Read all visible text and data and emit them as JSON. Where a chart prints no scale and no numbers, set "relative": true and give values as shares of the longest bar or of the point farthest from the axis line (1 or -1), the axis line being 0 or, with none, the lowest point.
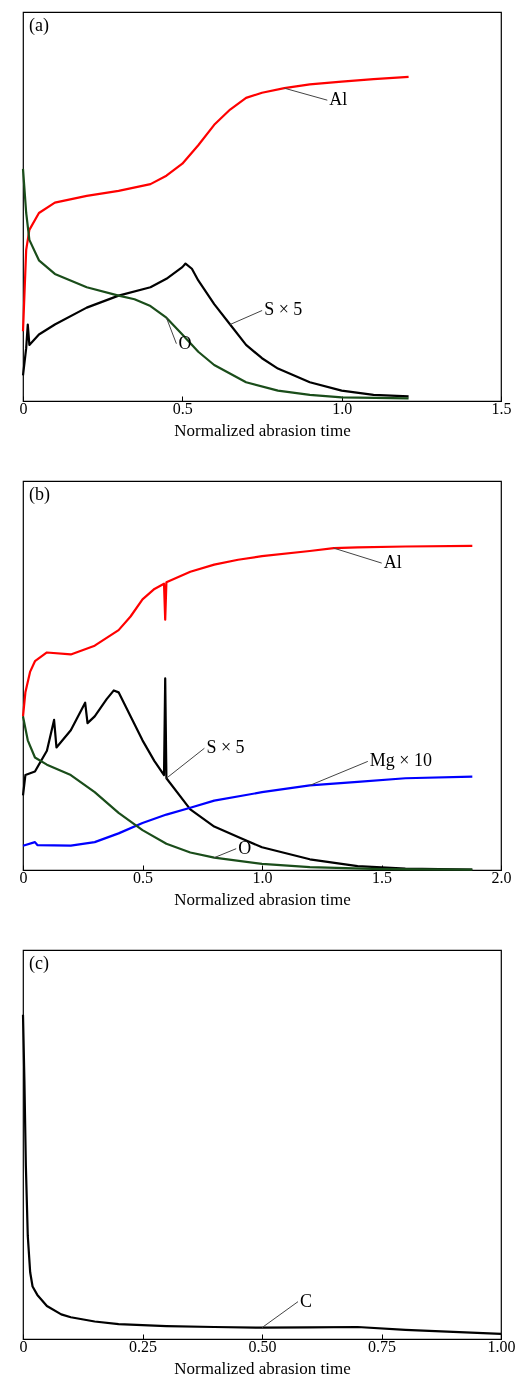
{
  "chart_data": [
    {
      "type": "line",
      "title": "(a)",
      "xlabel": "Normalized abrasion time",
      "relative": true,
      "xlim": [
        0,
        1.5
      ],
      "xticks": [
        0,
        0.5,
        {
          "value": 1,
          "label": "1.0"
        },
        1.5
      ],
      "tick_labels": "x",
      "marker": "none",
      "grid": false,
      "series": [
        {
          "name": "Al",
          "color": "#ff0000",
          "x": [
            0,
            0.01,
            0.02,
            0.05,
            0.1,
            0.2,
            0.3,
            0.4,
            0.45,
            0.5,
            0.55,
            0.6,
            0.65,
            0.7,
            0.75,
            0.82,
            0.9,
            1.0,
            1.1,
            1.21
          ],
          "values": [
            0.215,
            0.466,
            0.528,
            0.58,
            0.612,
            0.633,
            0.648,
            0.669,
            0.695,
            0.732,
            0.789,
            0.852,
            0.899,
            0.935,
            0.951,
            0.965,
            0.977,
            0.985,
            0.993,
            1
          ]
        },
        {
          "name": "S × 5",
          "color": "#000000",
          "x": [
            0,
            0.01,
            0.015,
            0.02,
            0.05,
            0.1,
            0.2,
            0.3,
            0.4,
            0.45,
            0.5,
            0.51,
            0.53,
            0.55,
            0.6,
            0.65,
            0.7,
            0.75,
            0.8,
            0.9,
            1.0,
            1.1,
            1.21
          ],
          "values": [
            0.079,
            0.163,
            0.236,
            0.173,
            0.205,
            0.236,
            0.288,
            0.325,
            0.351,
            0.377,
            0.413,
            0.424,
            0.408,
            0.372,
            0.299,
            0.236,
            0.173,
            0.132,
            0.1,
            0.058,
            0.032,
            0.019,
            0.014
          ]
        },
        {
          "name": "O",
          "color": "#1a4d1a",
          "x": [
            0,
            0.01,
            0.02,
            0.05,
            0.1,
            0.2,
            0.3,
            0.35,
            0.4,
            0.45,
            0.5,
            0.55,
            0.6,
            0.7,
            0.8,
            0.9,
            1.0,
            1.21
          ],
          "values": [
            0.716,
            0.58,
            0.497,
            0.434,
            0.392,
            0.351,
            0.325,
            0.314,
            0.293,
            0.257,
            0.205,
            0.152,
            0.111,
            0.058,
            0.032,
            0.019,
            0.011,
            0.008
          ]
        }
      ]
    },
    {
      "type": "line",
      "title": "(b)",
      "xlabel": "Normalized abrasion time",
      "relative": true,
      "xlim": [
        0,
        2
      ],
      "xticks": [
        0,
        0.5,
        {
          "value": 1,
          "label": "1.0"
        },
        1.5,
        {
          "value": 2,
          "label": "2.0"
        }
      ],
      "tick_labels": "x",
      "marker": "none",
      "grid": false,
      "series": [
        {
          "name": "Al",
          "color": "#ff0000",
          "x": [
            0,
            0.01,
            0.03,
            0.05,
            0.1,
            0.2,
            0.3,
            0.4,
            0.45,
            0.5,
            0.55,
            0.59,
            0.595,
            0.6,
            0.7,
            0.8,
            0.9,
            1.0,
            1.2,
            1.3,
            1.4,
            1.6,
            1.88
          ],
          "values": [
            0.474,
            0.548,
            0.612,
            0.644,
            0.671,
            0.665,
            0.692,
            0.74,
            0.782,
            0.835,
            0.867,
            0.883,
            0.772,
            0.888,
            0.92,
            0.942,
            0.957,
            0.968,
            0.984,
            0.993,
            0.995,
            0.998,
            1
          ]
        },
        {
          "name": "S × 5",
          "color": "#000000",
          "x": [
            0,
            0.01,
            0.05,
            0.1,
            0.13,
            0.14,
            0.2,
            0.26,
            0.27,
            0.3,
            0.35,
            0.38,
            0.4,
            0.45,
            0.5,
            0.55,
            0.59,
            0.595,
            0.6,
            0.7,
            0.8,
            0.9,
            1.0,
            1.2,
            1.4,
            1.6,
            1.88
          ],
          "values": [
            0.23,
            0.293,
            0.304,
            0.368,
            0.463,
            0.378,
            0.431,
            0.516,
            0.453,
            0.474,
            0.527,
            0.554,
            0.548,
            0.474,
            0.4,
            0.336,
            0.293,
            0.591,
            0.283,
            0.187,
            0.134,
            0.102,
            0.07,
            0.033,
            0.012,
            0.004,
            0.001
          ]
        },
        {
          "name": "Mg × 10",
          "color": "#0000ff",
          "x": [
            0,
            0.05,
            0.06,
            0.2,
            0.3,
            0.4,
            0.5,
            0.6,
            0.7,
            0.8,
            1.0,
            1.2,
            1.4,
            1.6,
            1.88
          ],
          "values": [
            0.075,
            0.086,
            0.077,
            0.075,
            0.086,
            0.113,
            0.145,
            0.171,
            0.192,
            0.214,
            0.24,
            0.261,
            0.272,
            0.283,
            0.288
          ]
        },
        {
          "name": "O",
          "color": "#1a4d1a",
          "x": [
            0,
            0.02,
            0.05,
            0.1,
            0.2,
            0.3,
            0.4,
            0.5,
            0.6,
            0.7,
            0.8,
            1.0,
            1.2,
            1.5,
            1.88
          ],
          "values": [
            0.474,
            0.4,
            0.347,
            0.325,
            0.293,
            0.24,
            0.176,
            0.123,
            0.081,
            0.054,
            0.038,
            0.019,
            0.009,
            0.003,
            0.001
          ]
        }
      ]
    },
    {
      "type": "line",
      "title": "(c)",
      "xlabel": "Normalized abrasion time",
      "relative": true,
      "xlim": [
        0,
        1
      ],
      "xticks": [
        0,
        0.25,
        {
          "value": 0.5,
          "label": "0.50"
        },
        0.75,
        {
          "value": 1,
          "label": "1.00"
        }
      ],
      "tick_labels": "x",
      "marker": "none",
      "grid": false,
      "series": [
        {
          "name": "C",
          "color": "#000000",
          "x": [
            0,
            0.003,
            0.006,
            0.01,
            0.015,
            0.02,
            0.03,
            0.05,
            0.08,
            0.1,
            0.15,
            0.2,
            0.3,
            0.4,
            0.5,
            0.6,
            0.7,
            0.8,
            0.9,
            1.0
          ],
          "values": [
            1,
            0.793,
            0.534,
            0.318,
            0.206,
            0.162,
            0.136,
            0.102,
            0.076,
            0.067,
            0.054,
            0.046,
            0.04,
            0.037,
            0.035,
            0.036,
            0.037,
            0.028,
            0.022,
            0.016
          ]
        }
      ]
    }
  ]
}
